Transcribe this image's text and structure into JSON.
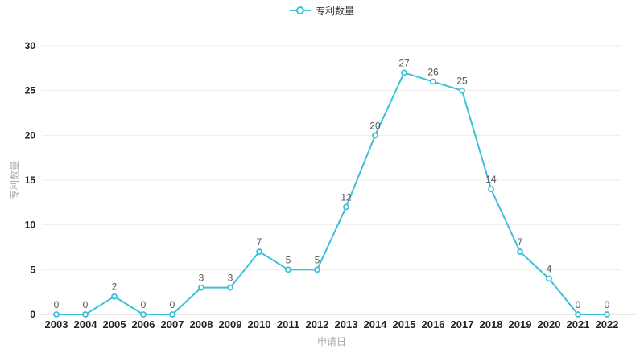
{
  "legend": {
    "label": "专利数量"
  },
  "chart_data": {
    "type": "line",
    "title": "",
    "xlabel": "申请日",
    "ylabel": "专利数量",
    "categories": [
      "2003",
      "2004",
      "2005",
      "2006",
      "2007",
      "2008",
      "2009",
      "2010",
      "2011",
      "2012",
      "2013",
      "2014",
      "2015",
      "2016",
      "2017",
      "2018",
      "2019",
      "2020",
      "2021",
      "2022"
    ],
    "series": [
      {
        "name": "专利数量",
        "values": [
          0,
          0,
          2,
          0,
          0,
          3,
          3,
          7,
          5,
          5,
          12,
          20,
          27,
          26,
          25,
          14,
          7,
          4,
          0,
          0
        ]
      }
    ],
    "ylim": [
      0,
      30
    ],
    "y_ticks": [
      0,
      5,
      10,
      15,
      20,
      25,
      30
    ],
    "grid": true,
    "legend_position": "top",
    "data_labels": true,
    "colors": {
      "line": "#3bc0d8",
      "marker_fill": "#ffffff",
      "grid_line": "#ededed",
      "axis_line": "#cccccc",
      "tick_label": "#222222",
      "data_label": "#555555",
      "axis_name": "#aaaaaa",
      "legend_text": "#333333"
    }
  }
}
